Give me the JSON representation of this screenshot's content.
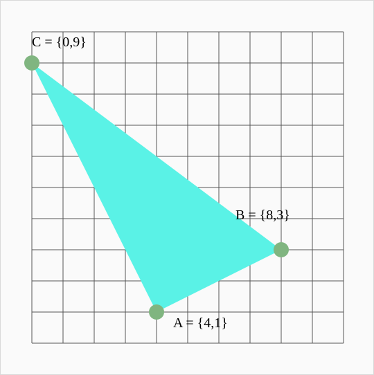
{
  "chart_data": {
    "type": "scatter",
    "xlim": [
      0,
      10
    ],
    "ylim": [
      0,
      10
    ],
    "grid": true,
    "points": [
      {
        "name": "A",
        "x": 4,
        "y": 1,
        "label": "A = {4,1}"
      },
      {
        "name": "B",
        "x": 8,
        "y": 3,
        "label": "B = {8,3}"
      },
      {
        "name": "C",
        "x": 0,
        "y": 9,
        "label": "C = {0,9}"
      }
    ],
    "polygon": [
      "A",
      "B",
      "C"
    ]
  },
  "colors": {
    "fill": "#5af2e6",
    "point": "#80b580",
    "grid": "#555555",
    "background": "#fafafa"
  }
}
